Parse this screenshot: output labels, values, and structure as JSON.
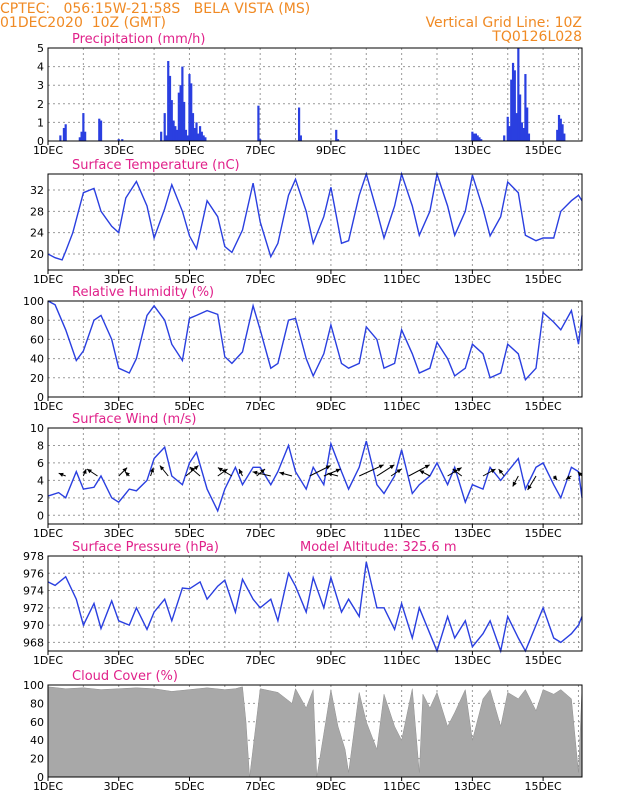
{
  "header": {
    "line1_left": "CPTEC:   056:15W-21:58S   BELA VISTA (MS)",
    "line2_left": "01DEC2020  10Z (GMT)",
    "line1_right": "Vertical Grid Line: 10Z",
    "line2_right": "TQ0126L028"
  },
  "colors": {
    "header": "#f08a24",
    "title": "#e0218a",
    "line": "#2a3fe0",
    "cloud": "#a8a8a8"
  },
  "chart_data": [
    {
      "id": "precip",
      "type": "bar",
      "title": "Precipitation (mm/h)",
      "ylim": [
        0,
        5
      ],
      "yticks": [
        0,
        1,
        2,
        3,
        4,
        5
      ],
      "xdomain": [
        0,
        15.1
      ],
      "xtick_labels": [
        "1DEC",
        "3DEC",
        "5DEC",
        "7DEC",
        "9DEC",
        "11DEC",
        "13DEC",
        "15DEC"
      ],
      "x": [
        0.35,
        0.45,
        0.5,
        0.9,
        0.95,
        1.0,
        1.05,
        1.45,
        1.5,
        2.0,
        2.1,
        3.2,
        3.3,
        3.35,
        3.4,
        3.45,
        3.5,
        3.55,
        3.6,
        3.65,
        3.7,
        3.75,
        3.8,
        3.85,
        3.9,
        3.95,
        4.0,
        4.05,
        4.1,
        4.15,
        4.2,
        4.25,
        4.3,
        4.35,
        4.4,
        4.45,
        5.95,
        6.0,
        7.1,
        7.15,
        8.15,
        8.2,
        12.0,
        12.05,
        12.1,
        12.15,
        12.2,
        12.25,
        12.9,
        13.0,
        13.05,
        13.1,
        13.15,
        13.2,
        13.25,
        13.3,
        13.35,
        13.4,
        13.45,
        13.5,
        13.55,
        13.6,
        14.4,
        14.45,
        14.5,
        14.55,
        14.6
      ],
      "values": [
        0.3,
        0.7,
        0.9,
        0.2,
        0.5,
        1.5,
        0.5,
        1.2,
        1.1,
        0.1,
        0.1,
        0.5,
        1.5,
        0.3,
        4.3,
        3.5,
        2.2,
        1.1,
        0.8,
        0.6,
        2.6,
        3.0,
        4.0,
        2.1,
        0.6,
        0.3,
        3.6,
        3.1,
        1.5,
        0.7,
        1.0,
        0.4,
        0.8,
        0.5,
        0.3,
        0.2,
        1.9,
        0.1,
        1.8,
        0.3,
        0.6,
        0.1,
        0.5,
        0.4,
        0.4,
        0.3,
        0.2,
        0.1,
        0.3,
        1.3,
        0.8,
        3.3,
        4.2,
        3.8,
        1.5,
        5.0,
        2.5,
        1.0,
        0.7,
        3.6,
        1.8,
        0.4,
        0.6,
        1.4,
        1.2,
        0.9,
        0.4
      ]
    },
    {
      "id": "temp",
      "type": "line",
      "title": "Surface Temperature (nC)",
      "ylim": [
        17,
        35
      ],
      "yticks": [
        20,
        24,
        28,
        32
      ],
      "xdomain": [
        0,
        15.1
      ],
      "xtick_labels": [
        "1DEC",
        "3DEC",
        "5DEC",
        "7DEC",
        "9DEC",
        "11DEC",
        "13DEC",
        "15DEC"
      ],
      "x": [
        0.0,
        0.2,
        0.4,
        0.5,
        0.7,
        1.0,
        1.3,
        1.5,
        1.8,
        2.0,
        2.2,
        2.5,
        2.8,
        3.0,
        3.3,
        3.5,
        3.8,
        4.0,
        4.2,
        4.5,
        4.8,
        5.0,
        5.2,
        5.5,
        5.8,
        6.0,
        6.3,
        6.5,
        6.8,
        7.0,
        7.3,
        7.5,
        7.8,
        8.0,
        8.3,
        8.5,
        8.8,
        9.0,
        9.3,
        9.5,
        9.8,
        10.0,
        10.3,
        10.5,
        10.8,
        11.0,
        11.3,
        11.5,
        11.8,
        12.0,
        12.3,
        12.5,
        12.8,
        13.0,
        13.3,
        13.5,
        13.8,
        14.0,
        14.3,
        14.5,
        14.8,
        15.0,
        15.1
      ],
      "values": [
        20.0,
        19.3,
        18.9,
        20.5,
        24.0,
        31.5,
        32.3,
        28.0,
        25.2,
        24.0,
        30.5,
        33.6,
        29.0,
        23.0,
        28.5,
        33.0,
        28.0,
        23.4,
        21.0,
        30.0,
        27.0,
        21.4,
        20.3,
        24.5,
        33.3,
        26.0,
        19.5,
        22.0,
        31.0,
        34.0,
        28.0,
        22.0,
        27.0,
        32.5,
        22.0,
        22.5,
        31.0,
        35.0,
        28.0,
        23.0,
        29.0,
        35.0,
        29.0,
        23.5,
        28.0,
        35.0,
        29.0,
        23.5,
        28.0,
        34.8,
        28.5,
        23.4,
        27.0,
        33.5,
        31.5,
        23.5,
        22.5,
        23.0,
        23.0,
        28.0,
        30.0,
        31.0,
        30.0
      ]
    },
    {
      "id": "rh",
      "type": "line",
      "title": "Relative Humidity (%)",
      "ylim": [
        0,
        100
      ],
      "yticks": [
        0,
        20,
        40,
        60,
        80,
        100
      ],
      "xdomain": [
        0,
        15.1
      ],
      "xtick_labels": [
        "1DEC",
        "3DEC",
        "5DEC",
        "7DEC",
        "9DEC",
        "11DEC",
        "13DEC",
        "15DEC"
      ],
      "x": [
        0.0,
        0.2,
        0.5,
        0.8,
        1.0,
        1.3,
        1.5,
        1.8,
        2.0,
        2.3,
        2.5,
        2.8,
        3.0,
        3.3,
        3.5,
        3.8,
        4.0,
        4.2,
        4.5,
        4.8,
        5.0,
        5.2,
        5.5,
        5.8,
        6.0,
        6.3,
        6.5,
        6.8,
        7.0,
        7.3,
        7.5,
        7.8,
        8.0,
        8.3,
        8.5,
        8.8,
        9.0,
        9.3,
        9.5,
        9.8,
        10.0,
        10.3,
        10.5,
        10.8,
        11.0,
        11.3,
        11.5,
        11.8,
        12.0,
        12.3,
        12.5,
        12.8,
        13.0,
        13.3,
        13.5,
        13.8,
        14.0,
        14.3,
        14.5,
        14.8,
        15.0,
        15.1
      ],
      "values": [
        100,
        96,
        70,
        38,
        48,
        80,
        85,
        60,
        30,
        25,
        40,
        85,
        95,
        80,
        55,
        38,
        82,
        85,
        90,
        86,
        42,
        35,
        47,
        95,
        70,
        30,
        35,
        80,
        82,
        40,
        22,
        45,
        75,
        35,
        30,
        35,
        73,
        60,
        30,
        35,
        70,
        45,
        25,
        30,
        57,
        40,
        22,
        30,
        55,
        45,
        20,
        25,
        55,
        45,
        18,
        30,
        88,
        78,
        70,
        90,
        55,
        85
      ]
    },
    {
      "id": "wind",
      "type": "line",
      "title": "Surface Wind (m/s)",
      "ylim": [
        -1,
        10
      ],
      "yticks": [
        0,
        2,
        4,
        6,
        8,
        10
      ],
      "xdomain": [
        0,
        15.1
      ],
      "xtick_labels": [
        "1DEC",
        "3DEC",
        "5DEC",
        "7DEC",
        "9DEC",
        "11DEC",
        "13DEC",
        "15DEC"
      ],
      "x": [
        0.0,
        0.3,
        0.5,
        0.8,
        1.0,
        1.3,
        1.5,
        1.8,
        2.0,
        2.3,
        2.5,
        2.8,
        3.0,
        3.3,
        3.5,
        3.8,
        4.0,
        4.2,
        4.5,
        4.8,
        5.0,
        5.3,
        5.5,
        5.8,
        6.0,
        6.3,
        6.5,
        6.8,
        7.0,
        7.3,
        7.5,
        7.8,
        8.0,
        8.3,
        8.5,
        8.8,
        9.0,
        9.3,
        9.5,
        9.8,
        10.0,
        10.3,
        10.5,
        10.8,
        11.0,
        11.3,
        11.5,
        11.8,
        12.0,
        12.3,
        12.5,
        12.8,
        13.0,
        13.3,
        13.5,
        13.8,
        14.0,
        14.3,
        14.5,
        14.8,
        15.0,
        15.1
      ],
      "values": [
        2.2,
        2.6,
        2.0,
        5.0,
        3.0,
        3.2,
        4.5,
        2.0,
        1.5,
        3.0,
        2.8,
        4.0,
        6.5,
        7.8,
        4.5,
        3.5,
        6.0,
        7.2,
        3.0,
        0.5,
        3.0,
        5.5,
        3.5,
        5.5,
        5.5,
        3.5,
        5.0,
        8.0,
        5.0,
        3.0,
        5.5,
        3.5,
        8.2,
        5.0,
        3.0,
        5.5,
        8.5,
        3.5,
        2.5,
        4.5,
        7.5,
        2.5,
        3.5,
        4.5,
        6.0,
        3.5,
        5.5,
        1.5,
        3.5,
        3.0,
        5.5,
        4.0,
        5.0,
        6.5,
        3.0,
        5.5,
        6.0,
        3.5,
        2.0,
        5.5,
        5.0,
        2.0
      ],
      "barb_x": [
        0.5,
        1.0,
        1.4,
        2.0,
        2.3,
        2.9,
        3.4,
        3.9,
        4.3,
        4.8,
        5.2,
        5.5,
        5.9,
        6.3,
        6.9,
        7.4,
        7.8,
        8.2,
        8.8,
        9.3,
        9.7,
        10.2,
        10.8,
        11.3,
        11.7,
        12.3,
        12.9,
        13.3,
        13.8,
        14.3,
        14.8,
        15.1
      ],
      "barb_u": [
        -1.0,
        0.4,
        -1.5,
        1.2,
        -0.6,
        0.4,
        -1.2,
        1.8,
        -1.5,
        1.4,
        -2.0,
        -0.5,
        1.2,
        -2.6,
        -1.8,
        3.0,
        2.4,
        -1.5,
        3.5,
        2.5,
        1.5,
        3.0,
        -1.5,
        2.0,
        -1.3,
        1.8,
        -0.8,
        -0.8,
        -1.2,
        0.5,
        -0.8,
        -0.6
      ],
      "barb_v": [
        0.4,
        1.0,
        1.0,
        1.2,
        0.6,
        1.2,
        1.5,
        1.5,
        1.3,
        1.0,
        1.2,
        1.0,
        1.0,
        0.6,
        0.5,
        1.5,
        1.0,
        0.4,
        1.6,
        1.6,
        1.0,
        1.6,
        0.8,
        1.2,
        1.0,
        1.0,
        1.0,
        -1.5,
        -2.0,
        -0.6,
        -0.5,
        0.6
      ]
    },
    {
      "id": "pres",
      "type": "line",
      "title": "Surface Pressure (hPa)",
      "annotation": "Model Altitude: 325.6 m",
      "ylim": [
        967,
        978
      ],
      "yticks": [
        968,
        970,
        972,
        974,
        976,
        978
      ],
      "xdomain": [
        0,
        15.1
      ],
      "xtick_labels": [
        "1DEC",
        "3DEC",
        "5DEC",
        "7DEC",
        "9DEC",
        "11DEC",
        "13DEC",
        "15DEC"
      ],
      "x": [
        0.0,
        0.2,
        0.5,
        0.8,
        1.0,
        1.3,
        1.5,
        1.8,
        2.0,
        2.3,
        2.5,
        2.8,
        3.0,
        3.3,
        3.5,
        3.8,
        4.0,
        4.3,
        4.5,
        4.8,
        5.0,
        5.3,
        5.5,
        5.8,
        6.0,
        6.3,
        6.5,
        6.8,
        7.0,
        7.3,
        7.5,
        7.8,
        8.0,
        8.3,
        8.5,
        8.8,
        9.0,
        9.3,
        9.5,
        9.8,
        10.0,
        10.3,
        10.5,
        10.8,
        11.0,
        11.3,
        11.5,
        11.8,
        12.0,
        12.3,
        12.5,
        12.8,
        13.0,
        13.3,
        13.5,
        13.8,
        14.0,
        14.3,
        14.5,
        14.8,
        15.0,
        15.1
      ],
      "values": [
        975.0,
        974.6,
        975.6,
        973.0,
        970.0,
        972.5,
        969.6,
        972.8,
        970.5,
        970.0,
        972.0,
        969.5,
        971.5,
        973.0,
        970.5,
        974.3,
        974.2,
        975.0,
        973.0,
        974.5,
        975.2,
        971.5,
        975.3,
        973.0,
        972.0,
        973.0,
        970.5,
        976.0,
        974.5,
        971.5,
        975.5,
        972.0,
        975.5,
        971.5,
        973.0,
        971.0,
        977.3,
        972.0,
        972.0,
        969.5,
        972.5,
        968.5,
        972.0,
        969.0,
        967.0,
        971.0,
        968.5,
        970.5,
        967.5,
        969.0,
        970.5,
        967.0,
        971.0,
        968.5,
        967.0,
        970.0,
        972.0,
        968.5,
        968.0,
        969.0,
        970.0,
        971.0
      ]
    },
    {
      "id": "cloud",
      "type": "area",
      "title": "Cloud Cover (%)",
      "ylim": [
        0,
        100
      ],
      "yticks": [
        0,
        20,
        40,
        60,
        80,
        100
      ],
      "xdomain": [
        0,
        15.1
      ],
      "xtick_labels": [
        "1DEC",
        "3DEC",
        "5DEC",
        "7DEC",
        "9DEC",
        "11DEC",
        "13DEC",
        "15DEC"
      ],
      "x": [
        0.0,
        0.5,
        1.0,
        1.5,
        2.0,
        2.5,
        3.0,
        3.5,
        4.0,
        4.5,
        5.0,
        5.3,
        5.5,
        5.6,
        5.7,
        6.0,
        6.5,
        6.9,
        7.0,
        7.3,
        7.5,
        7.6,
        8.0,
        8.2,
        8.4,
        8.5,
        8.8,
        9.0,
        9.3,
        9.5,
        9.8,
        10.0,
        10.3,
        10.5,
        10.6,
        10.8,
        11.0,
        11.3,
        11.5,
        11.8,
        12.0,
        12.3,
        12.5,
        12.8,
        13.0,
        13.3,
        13.5,
        13.8,
        14.0,
        14.3,
        14.5,
        14.8,
        15.0,
        15.1
      ],
      "values": [
        98,
        96,
        97,
        95,
        96,
        97,
        96,
        93,
        95,
        97,
        95,
        96,
        98,
        60,
        0,
        96,
        92,
        80,
        96,
        75,
        95,
        0,
        95,
        55,
        30,
        5,
        92,
        60,
        30,
        90,
        55,
        40,
        96,
        5,
        90,
        75,
        92,
        55,
        70,
        95,
        40,
        85,
        95,
        55,
        92,
        85,
        95,
        72,
        95,
        90,
        95,
        85,
        5,
        98
      ]
    }
  ]
}
